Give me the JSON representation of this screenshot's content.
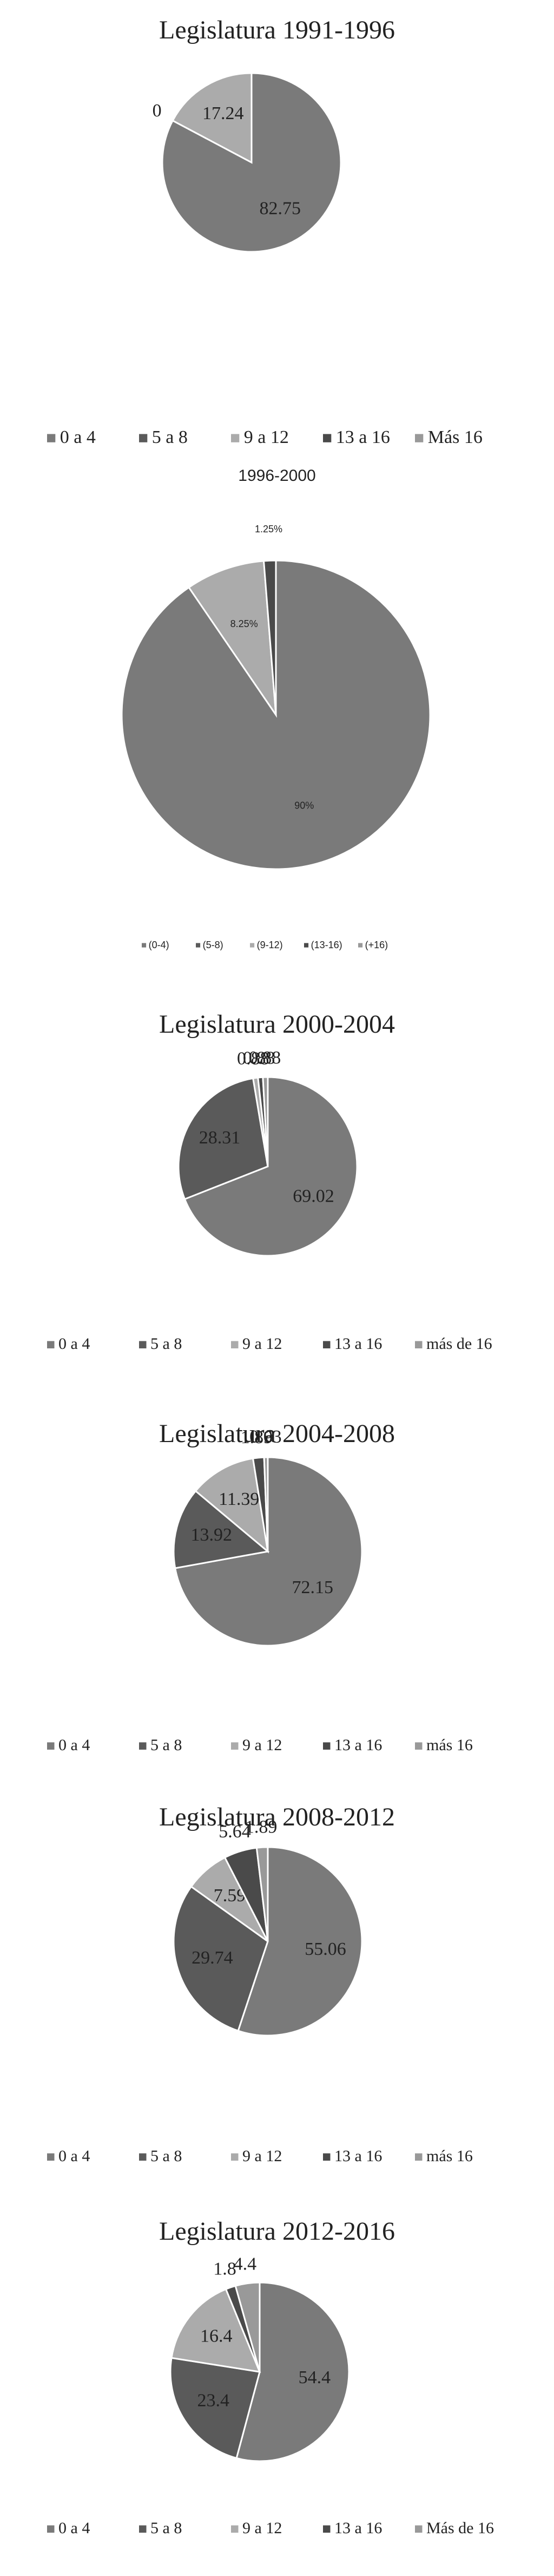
{
  "chart_data": [
    {
      "type": "pie",
      "title": "Legislatura 1991-1996",
      "categories": [
        "0 a 4",
        "5 a 8",
        "9 a 12",
        "13 a 16",
        "Más 16"
      ],
      "values": [
        82.75,
        0,
        17.24,
        null,
        null
      ],
      "colors": [
        "#7a7a7a",
        "#5a5a5a",
        "#ababab",
        "#4a4a4a",
        "#999999"
      ],
      "legend": "bottom"
    },
    {
      "type": "pie",
      "title": "1996-2000",
      "categories": [
        "(0-4)",
        "(5-8)",
        "(9-12)",
        "(13-16)",
        "(+16)"
      ],
      "values": [
        90,
        null,
        8.25,
        1.25,
        null
      ],
      "value_labels": [
        "90%",
        null,
        "8.25%",
        "1.25%",
        null
      ],
      "colors": [
        "#7a7a7a",
        "#5a5a5a",
        "#ababab",
        "#4a4a4a",
        "#999999"
      ],
      "legend": "bottom"
    },
    {
      "type": "pie",
      "title": "Legislatura 2000-2004",
      "categories": [
        "0 a 4",
        "5 a 8",
        "9 a 12",
        "13 a 16",
        "más de 16"
      ],
      "values": [
        69.02,
        28.31,
        0.88,
        0.88,
        0.88
      ],
      "colors": [
        "#7a7a7a",
        "#5a5a5a",
        "#ababab",
        "#4a4a4a",
        "#999999"
      ],
      "legend": "bottom"
    },
    {
      "type": "pie",
      "title": "Legislatura 2004-2008",
      "categories": [
        "0 a 4",
        "5 a 8",
        "9 a 12",
        "13 a 16",
        "más 16"
      ],
      "values": [
        72.15,
        13.92,
        11.39,
        1.89,
        0.63
      ],
      "colors": [
        "#7a7a7a",
        "#5a5a5a",
        "#ababab",
        "#4a4a4a",
        "#999999"
      ],
      "legend": "bottom"
    },
    {
      "type": "pie",
      "title": "Legislatura 2008-2012",
      "categories": [
        "0 a 4",
        "5 a 8",
        "9 a 12",
        "13 a 16",
        "más 16"
      ],
      "values": [
        55.06,
        29.74,
        7.59,
        5.64,
        1.89
      ],
      "colors": [
        "#7a7a7a",
        "#5a5a5a",
        "#ababab",
        "#4a4a4a",
        "#999999"
      ],
      "legend": "bottom"
    },
    {
      "type": "pie",
      "title": "Legislatura 2012-2016",
      "categories": [
        "0 a 4",
        "5 a 8",
        "9 a 12",
        "13 a 16",
        "Más de 16"
      ],
      "values": [
        54.4,
        23.4,
        16.4,
        1.8,
        4.4
      ],
      "colors": [
        "#7a7a7a",
        "#5a5a5a",
        "#ababab",
        "#4a4a4a",
        "#999999"
      ],
      "legend": "bottom"
    }
  ]
}
